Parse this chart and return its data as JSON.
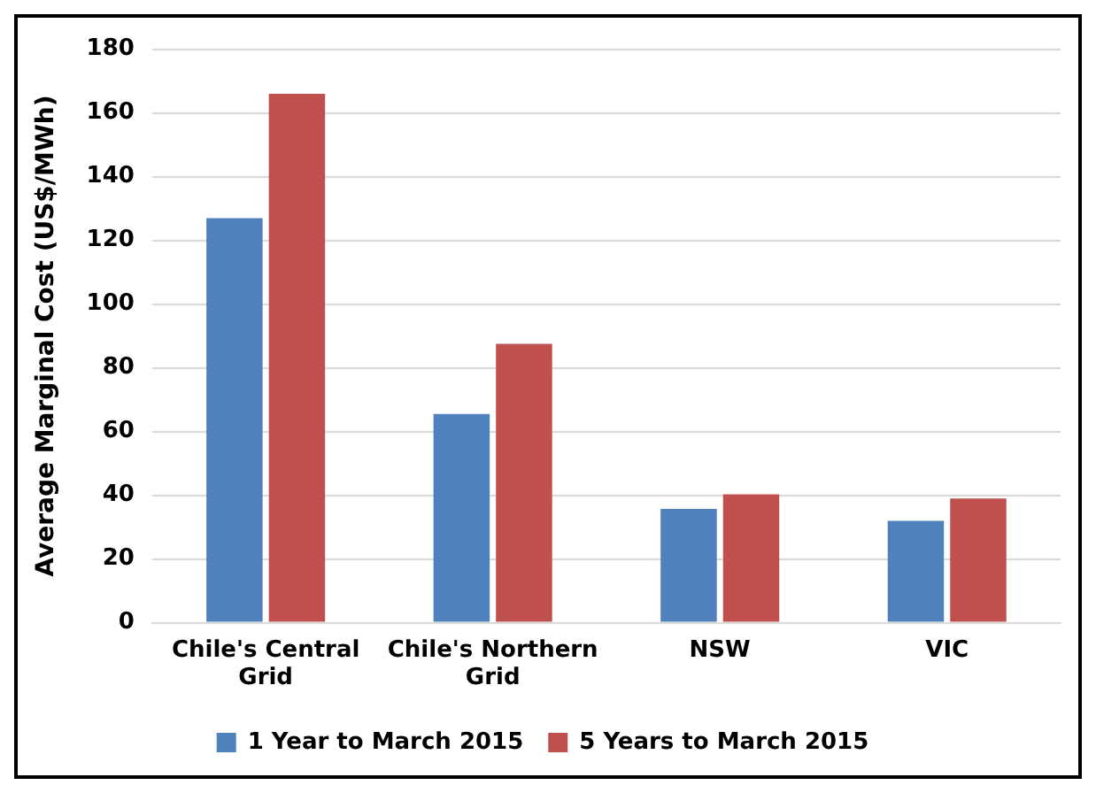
{
  "chart_data": {
    "type": "bar",
    "ylabel": "Average Marginal Cost (US$/MWh)",
    "categories": [
      "Chile's Central Grid",
      "Chile's Northern Grid",
      "NSW",
      "VIC"
    ],
    "series": [
      {
        "name": "1 Year to March 2015",
        "color": "#4f81bd",
        "values": [
          127,
          65.5,
          35.7,
          32
        ]
      },
      {
        "name": "5 Years to March 2015",
        "color": "#c0504d",
        "values": [
          166,
          87.5,
          40.3,
          39
        ]
      }
    ],
    "ylim": [
      0,
      180
    ],
    "yticks": [
      0,
      20,
      40,
      60,
      80,
      100,
      120,
      140,
      160,
      180
    ],
    "grid": "y",
    "legend": "bottom"
  }
}
